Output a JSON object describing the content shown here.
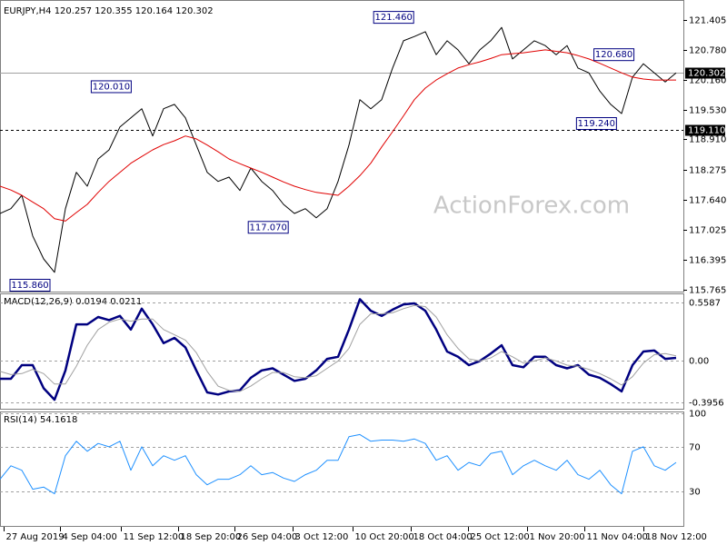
{
  "chart_data": [
    {
      "type": "price",
      "title": "EURJPY,H4  120.257 120.355 120.164 120.302",
      "watermark": "ActionForex.com",
      "xlim": [
        0,
        62.67
      ],
      "xticks": [
        {
          "value": 0.33,
          "label": "27 Aug 2019"
        },
        {
          "value": 5.5,
          "label": "4 Sep 04:00"
        },
        {
          "value": 11.1,
          "label": "11 Sep 12:00"
        },
        {
          "value": 16.3,
          "label": "18 Sep 20:00"
        },
        {
          "value": 21.5,
          "label": "26 Sep 04:00"
        },
        {
          "value": 26.8,
          "label": "3 Oct 12:00"
        },
        {
          "value": 32.3,
          "label": "10 Oct 20:00"
        },
        {
          "value": 37.7,
          "label": "18 Oct 04:00"
        },
        {
          "value": 42.9,
          "label": "25 Oct 12:00"
        },
        {
          "value": 48.3,
          "label": "1 Nov 20:00"
        },
        {
          "value": 53.6,
          "label": "11 Nov 04:00"
        },
        {
          "value": 59,
          "label": "18 Nov 12:00"
        }
      ],
      "ylim": [
        115.746,
        121.728
      ],
      "yticks": [
        121.405,
        {
          "value": 120.78,
          "label": "120.780"
        },
        {
          "value": 120.16,
          "label": "120.160"
        },
        {
          "value": 119.53,
          "label": "119.530"
        },
        {
          "value": 118.91,
          "label": "118.910"
        },
        118.275,
        {
          "value": 117.64,
          "label": "117.640"
        },
        117.025,
        116.395,
        115.765
      ],
      "series": [
        {
          "color": "#000000",
          "values": [
            117.36,
            117.46,
            117.74,
            116.89,
            116.41,
            116.13,
            117.46,
            118.22,
            117.93,
            118.5,
            118.69,
            119.17,
            119.36,
            119.55,
            118.98,
            119.55,
            119.64,
            119.36,
            118.79,
            118.22,
            118.03,
            118.12,
            117.84,
            118.31,
            118.03,
            117.84,
            117.55,
            117.36,
            117.46,
            117.27,
            117.46,
            118.03,
            118.79,
            119.74,
            119.55,
            119.74,
            120.4,
            120.97,
            121.06,
            121.16,
            120.68,
            120.97,
            120.78,
            120.49,
            120.78,
            120.97,
            121.25,
            120.59,
            120.78,
            120.97,
            120.87,
            120.68,
            120.87,
            120.4,
            120.3,
            119.92,
            119.64,
            119.45,
            120.21,
            120.49,
            120.3,
            120.11,
            120.3
          ]
        },
        {
          "color": "#e00000",
          "values": [
            117.93,
            117.85,
            117.74,
            117.6,
            117.46,
            117.25,
            117.2,
            117.38,
            117.55,
            117.8,
            118.03,
            118.22,
            118.41,
            118.55,
            118.69,
            118.8,
            118.88,
            118.98,
            118.92,
            118.79,
            118.65,
            118.5,
            118.4,
            118.31,
            118.22,
            118.12,
            118.02,
            117.93,
            117.86,
            117.8,
            117.77,
            117.74,
            117.93,
            118.15,
            118.41,
            118.75,
            119.07,
            119.4,
            119.74,
            119.98,
            120.15,
            120.28,
            120.4,
            120.47,
            120.53,
            120.6,
            120.68,
            120.7,
            120.72,
            120.75,
            120.78,
            120.75,
            120.72,
            120.66,
            120.59,
            120.5,
            120.4,
            120.3,
            120.21,
            120.17,
            120.15,
            120.15,
            120.15
          ]
        }
      ],
      "annotations": [
        {
          "x": 36.1,
          "y": {
            "value": 121.46,
            "label": "121.460"
          }
        },
        {
          "x": 10.2,
          "y": {
            "value": 120.01,
            "label": "120.010"
          }
        },
        {
          "x": 24.6,
          "y": {
            "value": 117.07,
            "label": "117.070"
          }
        },
        {
          "x": 2.75,
          "y": {
            "value": 115.86,
            "label": "115.860"
          }
        },
        {
          "x": 56.3,
          "y": {
            "value": 120.68,
            "label": "120.680"
          }
        },
        {
          "x": 54.7,
          "y": {
            "value": 119.24,
            "label": "119.240"
          }
        }
      ],
      "hlines": [
        {
          "value": 120.302,
          "style": "solid",
          "color": "#a0a0a0"
        },
        {
          "value": {
            "value": 119.11,
            "label": "119.110"
          },
          "style": "dashed",
          "color": "#000000"
        }
      ]
    },
    {
      "type": "line",
      "title": "MACD(12,26,9) 0.0194 0.0211",
      "ylim": [
        -0.456,
        0.628
      ],
      "yticks": [
        0.5587,
        {
          "value": 0,
          "label": "0.00"
        },
        -0.3956
      ],
      "grid": true,
      "series": [
        {
          "color": "#000080",
          "width": 2.5,
          "values": [
            -0.17,
            -0.17,
            -0.04,
            -0.04,
            -0.26,
            -0.37,
            -0.09,
            0.35,
            0.35,
            0.42,
            0.39,
            0.43,
            0.3,
            0.5,
            0.35,
            0.17,
            0.22,
            0.13,
            -0.09,
            -0.3,
            -0.32,
            -0.29,
            -0.28,
            -0.16,
            -0.09,
            -0.07,
            -0.13,
            -0.19,
            -0.17,
            -0.09,
            0.02,
            0.04,
            0.3,
            0.59,
            0.48,
            0.43,
            0.49,
            0.54,
            0.55,
            0.48,
            0.3,
            0.09,
            0.04,
            -0.04,
            0.0,
            0.07,
            0.15,
            -0.04,
            -0.06,
            0.04,
            0.04,
            -0.04,
            -0.07,
            -0.04,
            -0.13,
            -0.16,
            -0.22,
            -0.29,
            -0.04,
            0.09,
            0.1,
            0.02,
            0.03
          ]
        },
        {
          "color": "#a0a0a0",
          "width": 1,
          "values": [
            -0.1,
            -0.13,
            -0.12,
            -0.08,
            -0.12,
            -0.22,
            -0.22,
            -0.05,
            0.15,
            0.3,
            0.37,
            0.4,
            0.38,
            0.4,
            0.4,
            0.3,
            0.25,
            0.2,
            0.08,
            -0.1,
            -0.24,
            -0.28,
            -0.29,
            -0.24,
            -0.17,
            -0.11,
            -0.11,
            -0.15,
            -0.16,
            -0.14,
            -0.07,
            0.0,
            0.12,
            0.35,
            0.45,
            0.45,
            0.46,
            0.5,
            0.53,
            0.52,
            0.42,
            0.25,
            0.12,
            0.02,
            0.0,
            0.03,
            0.09,
            0.04,
            -0.02,
            0.0,
            0.03,
            0.0,
            -0.04,
            -0.05,
            -0.08,
            -0.12,
            -0.17,
            -0.23,
            -0.15,
            -0.02,
            0.06,
            0.07,
            0.05
          ]
        }
      ]
    },
    {
      "type": "line",
      "title": "RSI(14) 54.1618",
      "ylim": [
        0,
        100
      ],
      "yticks": [
        100,
        70,
        30
      ],
      "grid": true,
      "series": [
        {
          "color": "#1e90ff",
          "width": 1,
          "values": [
            41,
            53,
            49,
            32,
            34,
            28,
            62,
            75,
            66,
            73,
            70,
            75,
            49,
            70,
            53,
            62,
            58,
            62,
            45,
            36,
            41,
            41,
            45,
            53,
            45,
            47,
            42,
            39,
            45,
            49,
            58,
            58,
            79,
            81,
            75,
            76,
            76,
            75,
            77,
            73,
            58,
            62,
            49,
            56,
            53,
            64,
            66,
            45,
            53,
            58,
            53,
            49,
            58,
            45,
            41,
            49,
            36,
            28,
            66,
            70,
            53,
            49,
            56
          ]
        }
      ]
    }
  ]
}
